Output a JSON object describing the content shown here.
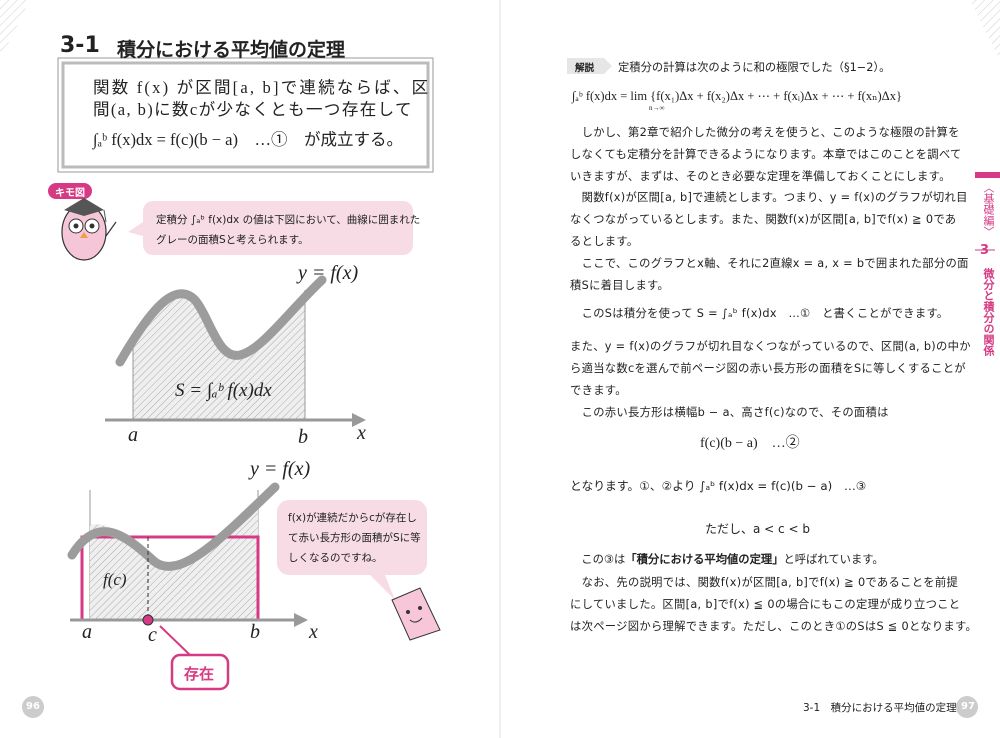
{
  "left_page": {
    "section_number": "3-1",
    "section_title": "積分における平均値の定理",
    "theorem_lines": [
      "関数 f(x) が区間[a, b]で連続ならば、区",
      "間(a, b)に数cが少なくとも一つ存在して",
      "∫ₐᵇ f(x)dx = f(c)(b − a)　…①　が成立する。"
    ],
    "kimo_label": "キモ図",
    "owl_bubble_lines": [
      "定積分 ∫ₐᵇ f(x)dx の値は下図において、曲線に囲まれた",
      "グレーの面積Sと考えられます。"
    ],
    "graph1": {
      "curve_label": "y = f(x)",
      "area_label": "S = ∫ₐᵇ f(x)dx",
      "a_label": "a",
      "b_label": "b",
      "x_label": "x"
    },
    "graph2": {
      "curve_label": "y = f(x)",
      "height_label": "f(c)",
      "a_label": "a",
      "c_label": "c",
      "b_label": "b",
      "x_label": "x"
    },
    "bubble2_lines": [
      "f(x)が連続だからcが存在し",
      "て赤い長方形の面積がSに等",
      "しくなるのですね。"
    ],
    "badge": "存在",
    "page_number": "96"
  },
  "right_page": {
    "kaisetsu_tag": "解説",
    "intro": "定積分の計算は次のように和の極限でした（§1−2）。",
    "formula_sum": "∫ₐᵇ f(x)dx = lim {f(x₁)Δx + f(x₂)Δx + ⋯ + f(xᵢ)Δx + ⋯ + f(xₙ)Δx}",
    "formula_sum_limit": "n→∞",
    "lines": [
      "　しかし、第2章で紹介した微分の考えを使うと、このような極限の計算を",
      "しなくても定積分を計算できるようになります。本章ではこのことを調べて",
      "いきますが、まずは、そのとき必要な定理を準備しておくことにします。",
      "　関数f(x)が区間[a, b]で連続とします。つまり、y = f(x)のグラフが切れ目",
      "なくつながっているとします。また、関数f(x)が区間[a, b]でf(x) ≧ 0であ",
      "るとします。",
      "　ここで、このグラフとx軸、それに2直線x = a, x = bで囲まれた部分の面",
      "積Sに着目します。",
      "　このSは積分を使って S = ∫ₐᵇ f(x)dx　…①　と書くことができます。",
      "また、y = f(x)のグラフが切れ目なくつながっているので、区間(a, b)の中か",
      "ら適当な数cを選んで前ページ図の赤い長方形の面積をSに等しくすることが",
      "できます。",
      "　この赤い長方形は横幅b − a、高さf(c)なので、その面積は"
    ],
    "formula_area": "f(c)(b − a)　…②",
    "conclusion": "となります。①、②より ∫ₐᵇ f(x)dx = f(c)(b − a)　…③",
    "condition": "ただし、a < c < b",
    "name_line": {
      "before": "　この③は",
      "bold": "「積分における平均値の定理」",
      "after": "と呼ばれています。"
    },
    "closing_lines": [
      "　なお、先の説明では、関数f(x)が区間[a, b]でf(x) ≧ 0であることを前提",
      "にしていました。区間[a, b]でf(x) ≦ 0の場合にもこの定理が成り立つこと",
      "は次ページ図から理解できます。ただし、このとき①のSはS ≦ 0となります。"
    ],
    "side_tab": {
      "part": "〈基礎編〉",
      "chapter": "3",
      "chapter_title": "微分と積分の関係"
    },
    "footer_title": "3-1　積分における平均値の定理",
    "page_number": "97"
  }
}
